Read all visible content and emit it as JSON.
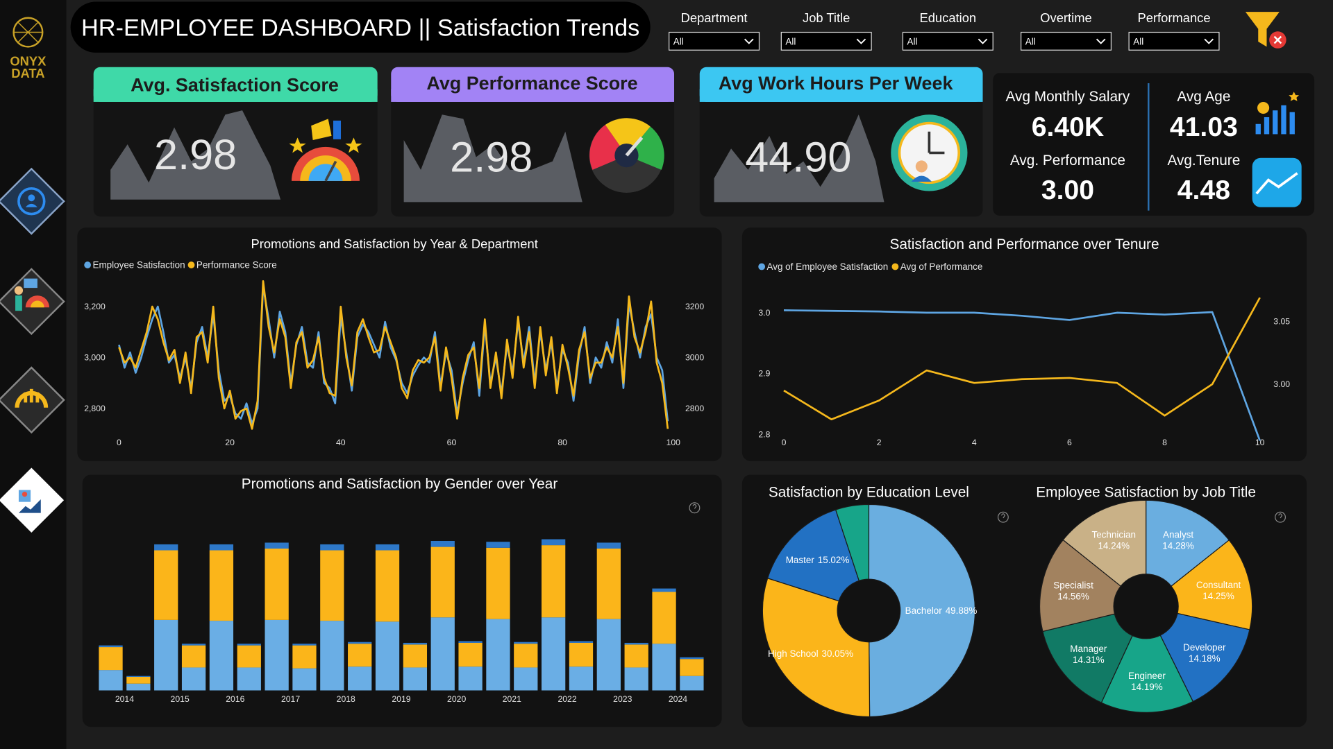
{
  "logo": {
    "line1": "ONYX",
    "line2": "DATA"
  },
  "header": {
    "title": "HR-EMPLOYEE DASHBOARD || Satisfaction Trends"
  },
  "filters": [
    {
      "label": "Department",
      "value": "All"
    },
    {
      "label": "Job Title",
      "value": "All"
    },
    {
      "label": "Education",
      "value": "All"
    },
    {
      "label": "Overtime",
      "value": "All"
    },
    {
      "label": "Performance",
      "value": "All"
    }
  ],
  "kpi_cards": [
    {
      "title": "Avg. Satisfaction Score",
      "value": "2.98"
    },
    {
      "title": "Avg Performance Score",
      "value": "2.98"
    },
    {
      "title": "Avg Work Hours Per Week",
      "value": "44.90"
    }
  ],
  "stats": [
    {
      "label": "Avg Monthly Salary",
      "value": "6.40K"
    },
    {
      "label": "Avg Age",
      "value": "41.03"
    },
    {
      "label": "Avg. Performance",
      "value": "3.00"
    },
    {
      "label": "Avg.Tenure",
      "value": "4.48"
    }
  ],
  "chart_data": [
    {
      "type": "line",
      "title": "Promotions and Satisfaction by Year & Department",
      "x": [
        0,
        1,
        2,
        3,
        4,
        5,
        6,
        7,
        8,
        9,
        10,
        11,
        12,
        13,
        14,
        15,
        16,
        17,
        18,
        19,
        20,
        21,
        22,
        23,
        24,
        25,
        26,
        27,
        28,
        29,
        30,
        31,
        32,
        33,
        34,
        35,
        36,
        37,
        38,
        39,
        40,
        41,
        42,
        43,
        44,
        45,
        46,
        47,
        48,
        49,
        50,
        51,
        52,
        53,
        54,
        55,
        56,
        57,
        58,
        59,
        60,
        61,
        62,
        63,
        64,
        65,
        66,
        67,
        68,
        69,
        70,
        71,
        72,
        73,
        74,
        75,
        76,
        77,
        78,
        79,
        80,
        81,
        82,
        83,
        84,
        85,
        86,
        87,
        88,
        89,
        90,
        91,
        92,
        93,
        94,
        95,
        96,
        97,
        98,
        99
      ],
      "xlim": [
        0,
        100
      ],
      "xticks": [
        0,
        20,
        40,
        60,
        80,
        100
      ],
      "ylim": [
        2700,
        3300
      ],
      "yticks": [
        {
          "value": 3200,
          "label": "3,200"
        },
        {
          "value": 3000,
          "label": "3,000"
        },
        {
          "value": 2800,
          "label": "2,800"
        }
      ],
      "y2lim": [
        2700,
        3300
      ],
      "y2ticks": [
        3200,
        3000,
        2800
      ],
      "series": [
        {
          "name": "Employee Satisfaction",
          "color": "#5ea5e2",
          "values": [
            3050,
            2960,
            3020,
            2940,
            3000,
            3080,
            3150,
            3200,
            3100,
            2980,
            3010,
            2920,
            3000,
            2880,
            3060,
            3120,
            3000,
            3170,
            2950,
            2830,
            2850,
            2780,
            2760,
            2820,
            2740,
            2800,
            3280,
            3150,
            3000,
            3180,
            3100,
            2900,
            3050,
            3120,
            2980,
            2960,
            3100,
            2900,
            2880,
            2820,
            3160,
            3020,
            2870,
            3080,
            3130,
            3100,
            3050,
            3000,
            3140,
            3040,
            2990,
            2900,
            2860,
            2930,
            2970,
            3000,
            2980,
            3100,
            2890,
            3020,
            2950,
            2780,
            2900,
            2990,
            3060,
            2850,
            3130,
            2900,
            3000,
            2860,
            3050,
            2940,
            3140,
            2980,
            3120,
            2900,
            3100,
            2950,
            3060,
            2880,
            3030,
            2980,
            2830,
            3010,
            3120,
            2900,
            3000,
            2960,
            3060,
            2980,
            3150,
            2880,
            3210,
            3100,
            3000,
            3120,
            3170,
            3000,
            2950,
            2750
          ]
        },
        {
          "name": "Performance Score",
          "color": "#f5b81c",
          "axis": "y2",
          "values": [
            3040,
            2980,
            3000,
            2960,
            3030,
            3100,
            3200,
            3150,
            3060,
            2990,
            3030,
            2900,
            3020,
            2860,
            3080,
            3100,
            2980,
            3200,
            2920,
            2800,
            2870,
            2760,
            2790,
            2800,
            2720,
            2830,
            3300,
            3120,
            3020,
            3150,
            3080,
            2880,
            3060,
            3100,
            2960,
            2990,
            3080,
            2920,
            2860,
            2850,
            3200,
            3000,
            2890,
            3100,
            3150,
            3080,
            3020,
            3030,
            3120,
            3060,
            3000,
            2880,
            2840,
            2950,
            2990,
            2980,
            3000,
            3080,
            2870,
            3040,
            2920,
            2760,
            2920,
            3010,
            3040,
            2880,
            3150,
            2880,
            3020,
            2840,
            3070,
            2920,
            3160,
            2960,
            3100,
            2880,
            3120,
            2930,
            3080,
            2860,
            3050,
            2960,
            2850,
            3030,
            3100,
            2920,
            2980,
            2980,
            3040,
            3000,
            3120,
            2900,
            3240,
            3080,
            3020,
            3100,
            3220,
            2980,
            2900,
            2720
          ]
        }
      ]
    },
    {
      "type": "line",
      "title": "Satisfaction and Performance over Tenure",
      "x": [
        0,
        1,
        2,
        3,
        4,
        5,
        6,
        7,
        8,
        9,
        10
      ],
      "xlim": [
        0,
        10
      ],
      "xticks": [
        0,
        2,
        4,
        6,
        8,
        10
      ],
      "ylim": [
        2.794,
        3.031
      ],
      "yticks": [
        {
          "value": 3,
          "label": "3.0"
        },
        2.9,
        2.8
      ],
      "y2lim": [
        2.957,
        3.072
      ],
      "y2ticks": [
        3.05,
        {
          "value": 3,
          "label": "3.00"
        }
      ],
      "series": [
        {
          "name": "Avg of Employee Satisfaction",
          "color": "#5ea5e2",
          "values": [
            3.004,
            3.003,
            3.002,
            3.0,
            3.0,
            2.995,
            2.988,
            3.0,
            2.997,
            3.001,
            2.79
          ]
        },
        {
          "name": "Avg of Performance",
          "color": "#f5b81c",
          "axis": "y2",
          "values": [
            2.995,
            2.972,
            2.987,
            3.011,
            3.001,
            3.004,
            3.005,
            3.001,
            2.975,
            3.0,
            3.069
          ]
        }
      ]
    },
    {
      "type": "bar",
      "stacked": true,
      "title": "Promotions and Satisfaction by Gender over Year",
      "categories": [
        "2014",
        null,
        "2015",
        null,
        "2016",
        null,
        "2017",
        null,
        "2018",
        null,
        "2019",
        null,
        "2020",
        null,
        "2021",
        null,
        "2022",
        null,
        "2023",
        null,
        "2024",
        null
      ],
      "ylim": [
        0,
        180
      ],
      "series": [
        {
          "color": "#6aaee5",
          "values": [
            24,
            8,
            83,
            27,
            82,
            27,
            83,
            26,
            82,
            28,
            81,
            27,
            86,
            28,
            84,
            27,
            86,
            28,
            84,
            27,
            55,
            17
          ]
        },
        {
          "color": "#fbb51a",
          "values": [
            27,
            8,
            82,
            26,
            83,
            26,
            84,
            27,
            83,
            27,
            84,
            27,
            83,
            28,
            84,
            28,
            85,
            28,
            83,
            27,
            61,
            20
          ]
        },
        {
          "color": "#2e78c8",
          "values": [
            2,
            1,
            7,
            2,
            7,
            2,
            7,
            2,
            7,
            2,
            7,
            2,
            7,
            2,
            7,
            2,
            7,
            2,
            7,
            2,
            4,
            2
          ]
        }
      ]
    },
    {
      "type": "pie",
      "donut": true,
      "title": "Satisfaction by Education Level",
      "categories": [
        "Bachelor",
        "High School",
        "Master",
        null
      ],
      "values": [
        49.88,
        30.05,
        15.02,
        5.05
      ],
      "value_labels": [
        "49.88%",
        "30.05%",
        "15.02%",
        null
      ],
      "colors": [
        "#6aaee0",
        "#fbb51a",
        "#2271c3",
        "#17a589"
      ]
    },
    {
      "type": "pie",
      "donut": true,
      "title": "Employee Satisfaction by Job Title",
      "categories": [
        "Analyst",
        "Consultant",
        "Developer",
        "Engineer",
        "Manager",
        "Specialist",
        "Technician"
      ],
      "values": [
        14.28,
        14.25,
        14.18,
        14.19,
        14.31,
        14.56,
        14.24
      ],
      "value_labels": [
        "14.28%",
        "14.25%",
        "14.18%",
        "14.19%",
        "14.31%",
        "14.56%",
        "14.24%"
      ],
      "colors": [
        "#6aaee0",
        "#fbb51a",
        "#2271c3",
        "#17a589",
        "#117a65",
        "#a2825f",
        "#c9b187"
      ]
    }
  ]
}
